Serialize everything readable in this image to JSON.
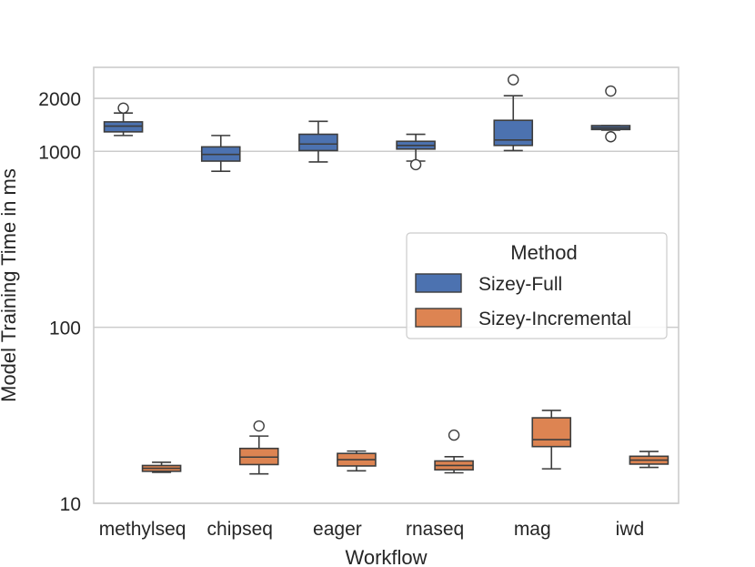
{
  "chart_data": {
    "type": "boxplot",
    "title": "",
    "xlabel": "Workflow",
    "ylabel": "Model Training Time in ms",
    "yscale": "log",
    "ylim": [
      10,
      3000
    ],
    "yticks": [
      10,
      100,
      1000,
      2000
    ],
    "ytick_labels": [
      "10",
      "100",
      "1000",
      "2000"
    ],
    "grid": true,
    "categories": [
      "methylseq",
      "chipseq",
      "eager",
      "rnaseq",
      "mag",
      "iwd"
    ],
    "legend": {
      "title": "Method",
      "position": "center-right"
    },
    "series": [
      {
        "name": "Sizey-Full",
        "color": "#4c72b0",
        "boxes": [
          {
            "whisker_low": 1230,
            "q1": 1290,
            "median": 1390,
            "q3": 1470,
            "whisker_high": 1650,
            "outliers": [
              1760
            ]
          },
          {
            "whisker_low": 770,
            "q1": 880,
            "median": 960,
            "q3": 1060,
            "whisker_high": 1230,
            "outliers": []
          },
          {
            "whisker_low": 870,
            "q1": 1010,
            "median": 1100,
            "q3": 1250,
            "whisker_high": 1480,
            "outliers": []
          },
          {
            "whisker_low": 880,
            "q1": 1030,
            "median": 1080,
            "q3": 1140,
            "whisker_high": 1250,
            "outliers": [
              840
            ]
          },
          {
            "whisker_low": 1010,
            "q1": 1080,
            "median": 1160,
            "q3": 1500,
            "whisker_high": 2070,
            "outliers": [
              2550
            ]
          },
          {
            "whisker_low": 1320,
            "q1": 1330,
            "median": 1360,
            "q3": 1400,
            "whisker_high": 1400,
            "outliers": [
              2200,
              1210
            ]
          }
        ]
      },
      {
        "name": "Sizey-Incremental",
        "color": "#dd8452",
        "boxes": [
          {
            "whisker_low": 15.0,
            "q1": 15.2,
            "median": 15.8,
            "q3": 16.4,
            "whisker_high": 17.1,
            "outliers": []
          },
          {
            "whisker_low": 14.7,
            "q1": 16.6,
            "median": 18.3,
            "q3": 20.5,
            "whisker_high": 24.1,
            "outliers": [
              27.5
            ]
          },
          {
            "whisker_low": 15.3,
            "q1": 16.3,
            "median": 17.7,
            "q3": 19.2,
            "whisker_high": 19.8,
            "outliers": []
          },
          {
            "whisker_low": 14.9,
            "q1": 15.5,
            "median": 16.4,
            "q3": 17.4,
            "whisker_high": 18.4,
            "outliers": [
              24.4
            ]
          },
          {
            "whisker_low": 15.7,
            "q1": 21.0,
            "median": 23.0,
            "q3": 30.6,
            "whisker_high": 33.7,
            "outliers": []
          },
          {
            "whisker_low": 16.0,
            "q1": 16.7,
            "median": 17.6,
            "q3": 18.5,
            "whisker_high": 19.7,
            "outliers": []
          }
        ]
      }
    ]
  }
}
